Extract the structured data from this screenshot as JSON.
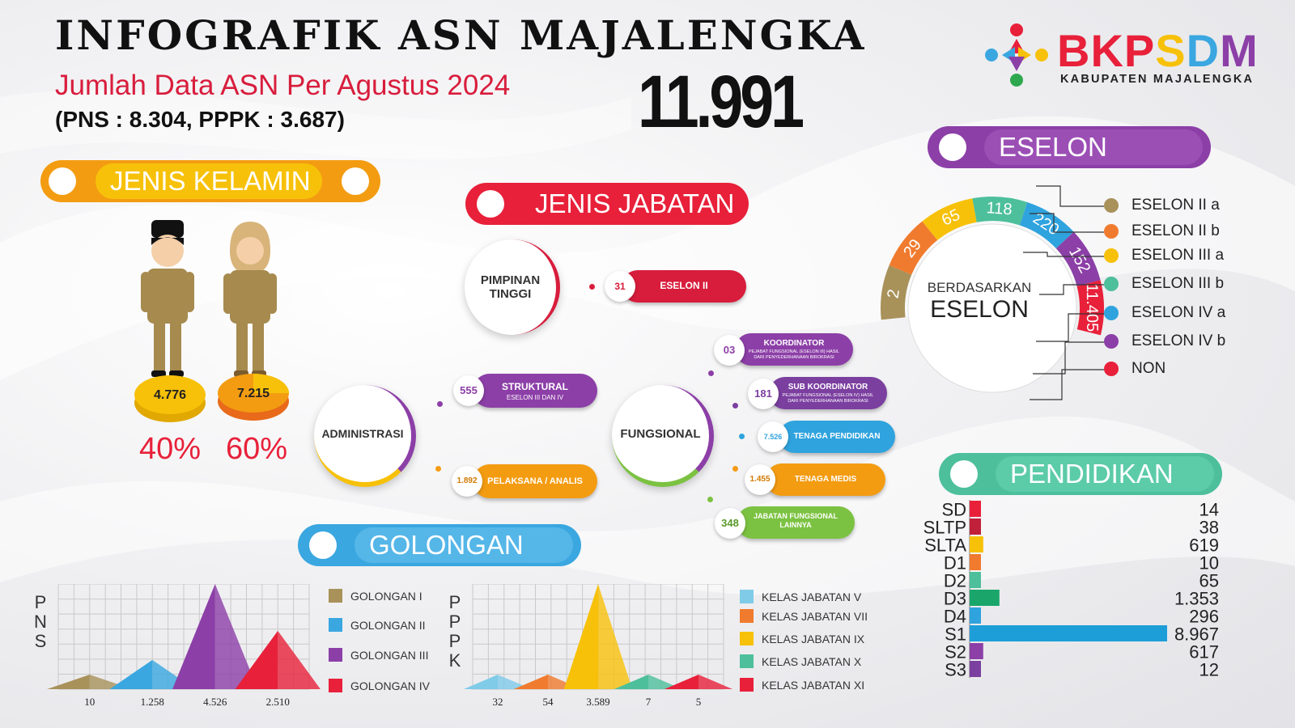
{
  "header": {
    "title": "INFOGRAFIK ASN MAJALENGKA",
    "subtitle": "Jumlah Data ASN Per Agustus 2024",
    "counts": "(PNS : 8.304, PPPK : 3.687)",
    "total": "11.991"
  },
  "logo": {
    "name": "BKPSDM",
    "letters": [
      "B",
      "K",
      "P",
      "S",
      "D",
      "M"
    ],
    "letter_colors": [
      "#e8203a",
      "#e8203a",
      "#e8203a",
      "#f7c10a",
      "#3aa7e0",
      "#8c3fa7"
    ],
    "subtitle": "KABUPATEN MAJALENGKA",
    "icon": "people-circle-logo-icon"
  },
  "sections": {
    "jenis_kelamin": "JENIS KELAMIN",
    "jenis_jabatan": "JENIS JABATAN",
    "eselon": "ESELON",
    "pendidikan": "PENDIDIKAN",
    "golongan": "GOLONGAN"
  },
  "gender": {
    "male_value": "4.776",
    "female_value": "7.215",
    "male_percent": "40%",
    "female_percent": "60%",
    "male_icon": "male-civil-servant-icon",
    "female_icon": "female-civil-servant-icon"
  },
  "jabatan": {
    "pimpinan": {
      "label": "PIMPINAN TINGGI",
      "items": [
        {
          "value": "31",
          "label": "ESELON II",
          "sub": "",
          "color": "#d81d3c"
        }
      ]
    },
    "administrasi": {
      "label": "ADMINISTRASI",
      "items": [
        {
          "value": "555",
          "label": "STRUKTURAL",
          "sub": "ESELON III DAN IV",
          "color": "#8c3fa7"
        },
        {
          "value": "1.892",
          "label": "PELAKSANA / ANALIS",
          "sub": "",
          "color": "#f39c12"
        }
      ]
    },
    "fungsional": {
      "label": "FUNGSIONAL",
      "items": [
        {
          "value": "03",
          "label": "KOORDINATOR",
          "sub": "PEJABAT FUNGSIONAL (ESELON III) HASIL DARI PENYEDERHANAAN BIROKRASI",
          "color": "#8c3fa7"
        },
        {
          "value": "181",
          "label": "SUB KOORDINATOR",
          "sub": "PEJABAT FUNGSIONAL (ESELON IV) HASIL DARI PENYEDERHANAAN BIROKRASI",
          "color": "#7b3fa0"
        },
        {
          "value": "7.526",
          "label": "TENAGA PENDIDIKAN",
          "sub": "",
          "color": "#2fa3de"
        },
        {
          "value": "1.455",
          "label": "TENAGA MEDIS",
          "sub": "",
          "color": "#f39c12"
        },
        {
          "value": "348",
          "label": "JABATAN FUNGSIONAL LAINNYA",
          "sub": "",
          "color": "#7cc242"
        }
      ]
    }
  },
  "chart_data": [
    {
      "type": "pie",
      "title": "ESELON",
      "center_label": [
        "BERDASARKAN",
        "ESELON"
      ],
      "categories": [
        "ESELON II a",
        "ESELON II b",
        "ESELON III a",
        "ESELON III b",
        "ESELON IV a",
        "ESELON IV b",
        "NON"
      ],
      "values": [
        2,
        29,
        65,
        118,
        220,
        152,
        11405
      ],
      "value_labels": [
        "2",
        "29",
        "65",
        "118",
        "220",
        "152",
        "11.405"
      ],
      "colors": [
        "#a8925a",
        "#f07b2e",
        "#f7c10a",
        "#4dbf9b",
        "#2fa3de",
        "#8c3fa7",
        "#e8203a"
      ],
      "legend": "right"
    },
    {
      "type": "bar",
      "orientation": "horizontal",
      "title": "PENDIDIKAN",
      "categories": [
        "SD",
        "SLTP",
        "SLTA",
        "D1",
        "D2",
        "D3",
        "D4",
        "S1",
        "S2",
        "S3"
      ],
      "values": [
        14,
        38,
        619,
        10,
        65,
        1353,
        296,
        8967,
        617,
        12
      ],
      "value_labels": [
        "14",
        "38",
        "619",
        "10",
        "65",
        "1.353",
        "296",
        "8.967",
        "617",
        "12"
      ],
      "colors": [
        "#e8203a",
        "#c0203a",
        "#f7c10a",
        "#f07b2e",
        "#4dbf9b",
        "#1aa66a",
        "#2fa3de",
        "#1e9ed8",
        "#8c3fa7",
        "#7b3fa0"
      ]
    },
    {
      "type": "area",
      "subtype": "triangle",
      "ylabel": "PNS",
      "categories": [
        "GOLONGAN I",
        "GOLONGAN II",
        "GOLONGAN III",
        "GOLONGAN IV"
      ],
      "values": [
        10,
        1258,
        4526,
        2510
      ],
      "value_labels": [
        "10",
        "1.258",
        "4.526",
        "2.510"
      ],
      "colors": [
        "#a8925a",
        "#3aa7e0",
        "#8c3fa7",
        "#e8203a"
      ],
      "grid": true,
      "legend": "right"
    },
    {
      "type": "area",
      "subtype": "triangle",
      "ylabel": "PPPK",
      "categories": [
        "KELAS JABATAN V",
        "KELAS JABATAN VII",
        "KELAS JABATAN IX",
        "KELAS JABATAN X",
        "KELAS JABATAN XI"
      ],
      "values": [
        32,
        54,
        3589,
        7,
        5
      ],
      "value_labels": [
        "32",
        "54",
        "3.589",
        "7",
        "5"
      ],
      "colors": [
        "#7fcbe8",
        "#f07b2e",
        "#f7c10a",
        "#4dbf9b",
        "#e8203a"
      ],
      "grid": true,
      "legend": "right"
    }
  ]
}
